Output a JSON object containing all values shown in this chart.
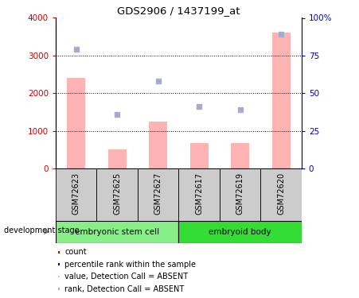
{
  "title": "GDS2906 / 1437199_at",
  "samples": [
    "GSM72623",
    "GSM72625",
    "GSM72627",
    "GSM72617",
    "GSM72619",
    "GSM72620"
  ],
  "bar_values": [
    2400,
    500,
    1250,
    680,
    670,
    3600
  ],
  "bar_color": "#ffb3b3",
  "scatter_color": "#aaaacc",
  "ylim_left": [
    0,
    4000
  ],
  "ylim_right": [
    0,
    100
  ],
  "yticks_left": [
    0,
    1000,
    2000,
    3000,
    4000
  ],
  "ytick_labels_left": [
    "0",
    "1000",
    "2000",
    "3000",
    "4000"
  ],
  "ytick_labels_right": [
    "0",
    "25",
    "50",
    "75",
    "100%"
  ],
  "groups": [
    {
      "label": "embryonic stem cell",
      "samples": [
        0,
        1,
        2
      ],
      "color": "#88ee88"
    },
    {
      "label": "embryoid body",
      "samples": [
        3,
        4,
        5
      ],
      "color": "#33dd33"
    }
  ],
  "dev_stage_label": "development stage",
  "legend_items": [
    {
      "color": "#cc0000",
      "label": "count"
    },
    {
      "color": "#0000cc",
      "label": "percentile rank within the sample"
    },
    {
      "color": "#ffb3b3",
      "label": "value, Detection Call = ABSENT"
    },
    {
      "color": "#aaaacc",
      "label": "rank, Detection Call = ABSENT"
    }
  ],
  "left_axis_color": "#cc0000",
  "right_axis_color": "#0000cc",
  "scatter_right_values": [
    79,
    36,
    58,
    41,
    39,
    89
  ],
  "sample_box_color": "#cccccc"
}
